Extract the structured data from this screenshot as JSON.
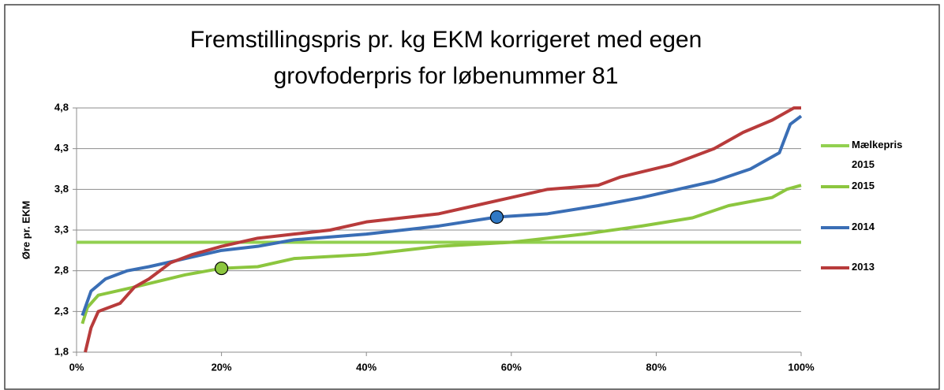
{
  "chart_data": {
    "type": "line",
    "title": [
      "Fremstillingspris pr. kg EKM korrigeret med egen",
      "grovfoderpris for løbenummer 81"
    ],
    "y_label": "Øre pr. EKM",
    "xlim": [
      0,
      100
    ],
    "xticks": [
      {
        "value": 0,
        "label": "0%"
      },
      {
        "value": 20,
        "label": "20%"
      },
      {
        "value": 40,
        "label": "40%"
      },
      {
        "value": 60,
        "label": "60%"
      },
      {
        "value": 80,
        "label": "80%"
      },
      {
        "value": 100,
        "label": "100%"
      }
    ],
    "ylim": [
      1.8,
      4.8
    ],
    "yticks": [
      {
        "value": 1.8,
        "label": "1,8"
      },
      {
        "value": 2.3,
        "label": "2,3"
      },
      {
        "value": 2.8,
        "label": "2,8"
      },
      {
        "value": 3.3,
        "label": "3,3"
      },
      {
        "value": 3.8,
        "label": "3,8"
      },
      {
        "value": 4.3,
        "label": "4,3"
      },
      {
        "value": 4.8,
        "label": "4,8"
      }
    ],
    "grid": true,
    "legend": "right",
    "series": [
      {
        "name": "Mælkepris 2015",
        "color": "#92d050",
        "x": [
          0,
          100
        ],
        "values": [
          3.15,
          3.15
        ]
      },
      {
        "name": "2015",
        "color": "#8cc63f",
        "x": [
          0.8,
          1.5,
          3,
          8,
          15,
          20,
          25,
          30,
          40,
          50,
          60,
          70,
          78,
          85,
          90,
          96,
          98,
          100
        ],
        "values": [
          2.15,
          2.35,
          2.5,
          2.6,
          2.75,
          2.83,
          2.85,
          2.95,
          3.0,
          3.1,
          3.15,
          3.25,
          3.35,
          3.45,
          3.6,
          3.7,
          3.8,
          3.85
        ]
      },
      {
        "name": "2014",
        "color": "#3a6eb5",
        "x": [
          0.8,
          2,
          4,
          7,
          10,
          15,
          20,
          25,
          30,
          40,
          50,
          58,
          65,
          72,
          78,
          83,
          88,
          93,
          97,
          98.5,
          100
        ],
        "values": [
          2.25,
          2.55,
          2.7,
          2.8,
          2.85,
          2.95,
          3.05,
          3.1,
          3.18,
          3.25,
          3.35,
          3.46,
          3.5,
          3.6,
          3.7,
          3.8,
          3.9,
          4.05,
          4.25,
          4.6,
          4.7
        ]
      },
      {
        "name": "2013",
        "color": "#b83b3b",
        "x": [
          1.2,
          2,
          3,
          6,
          8,
          10,
          13,
          16,
          20,
          25,
          30,
          35,
          40,
          45,
          50,
          55,
          60,
          65,
          72,
          75,
          82,
          88,
          92,
          96,
          99,
          100
        ],
        "values": [
          1.8,
          2.1,
          2.3,
          2.4,
          2.6,
          2.7,
          2.9,
          3.0,
          3.1,
          3.2,
          3.25,
          3.3,
          3.4,
          3.45,
          3.5,
          3.6,
          3.7,
          3.8,
          3.85,
          3.95,
          4.1,
          4.3,
          4.5,
          4.65,
          4.8,
          4.8
        ]
      }
    ],
    "points": [
      {
        "x": 20,
        "y": 2.83,
        "color": "#8cc63f"
      },
      {
        "x": 58,
        "y": 3.46,
        "color": "#2f78c4"
      }
    ]
  }
}
